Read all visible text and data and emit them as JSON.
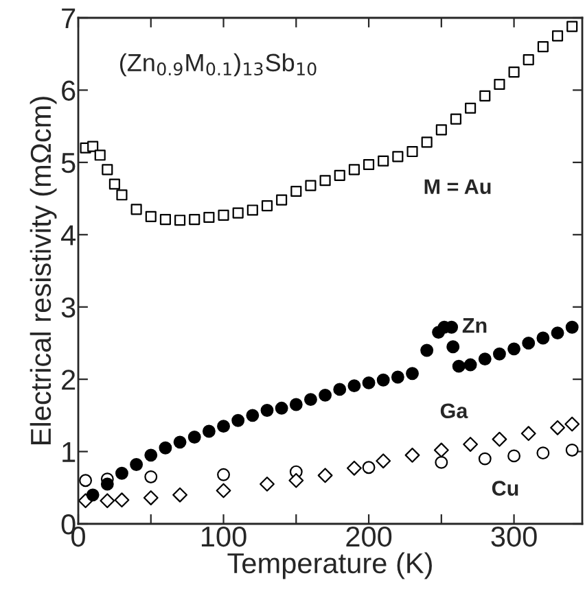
{
  "chart_data": {
    "type": "scatter",
    "xlabel": "Temperature (K)",
    "ylabel": "Electrical resistivity (mΩcm)",
    "annotations": [
      "(Zn$_{0.9}$M$_{0.1}$)$_{13}$Sb$_{10}$"
    ],
    "xlim": [
      0,
      347
    ],
    "ylim": [
      0,
      7
    ],
    "xticks": [
      0,
      {
        "value": 50,
        "label": null
      },
      100,
      {
        "value": 150,
        "label": null
      },
      200,
      {
        "value": 250,
        "label": null
      },
      300
    ],
    "yticks": [
      0,
      1,
      2,
      3,
      4,
      5,
      6,
      7
    ],
    "grid": false,
    "legend": false,
    "series": [
      {
        "name": "M = Au",
        "color": "#ffffff",
        "marker": "square",
        "x": [
          5,
          10,
          15,
          20,
          25,
          30,
          40,
          50,
          60,
          70,
          80,
          90,
          100,
          110,
          120,
          130,
          140,
          150,
          160,
          170,
          180,
          190,
          200,
          210,
          220,
          230,
          240,
          250,
          260,
          270,
          280,
          290,
          300,
          310,
          320,
          330,
          340
        ],
        "values": [
          5.2,
          5.22,
          5.1,
          4.9,
          4.7,
          4.55,
          4.35,
          4.25,
          4.21,
          4.2,
          4.21,
          4.24,
          4.27,
          4.3,
          4.34,
          4.4,
          4.48,
          4.6,
          4.68,
          4.75,
          4.82,
          4.9,
          4.97,
          5.02,
          5.08,
          5.15,
          5.28,
          5.45,
          5.6,
          5.75,
          5.92,
          6.08,
          6.25,
          6.42,
          6.6,
          6.75,
          6.88
        ]
      },
      {
        "name": "Zn",
        "color": "#000000",
        "marker": "circle",
        "x": [
          10,
          20,
          30,
          40,
          50,
          60,
          70,
          80,
          90,
          100,
          110,
          120,
          130,
          140,
          150,
          160,
          170,
          180,
          190,
          200,
          210,
          220,
          230,
          240,
          248,
          252,
          257,
          258,
          262,
          270,
          280,
          290,
          300,
          310,
          320,
          330,
          340
        ],
        "values": [
          0.4,
          0.55,
          0.7,
          0.82,
          0.95,
          1.05,
          1.13,
          1.2,
          1.28,
          1.35,
          1.43,
          1.5,
          1.57,
          1.6,
          1.65,
          1.72,
          1.78,
          1.86,
          1.91,
          1.95,
          1.99,
          2.03,
          2.08,
          2.4,
          2.65,
          2.72,
          2.72,
          2.45,
          2.18,
          2.2,
          2.28,
          2.35,
          2.42,
          2.5,
          2.57,
          2.64,
          2.72
        ]
      },
      {
        "name": "Ga",
        "color": "#ffffff",
        "marker": "diamond",
        "x": [
          5,
          20,
          30,
          50,
          70,
          100,
          130,
          150,
          170,
          190,
          210,
          230,
          250,
          270,
          290,
          310,
          330,
          340
        ],
        "values": [
          0.32,
          0.32,
          0.33,
          0.36,
          0.4,
          0.46,
          0.55,
          0.6,
          0.67,
          0.77,
          0.87,
          0.95,
          1.02,
          1.1,
          1.17,
          1.25,
          1.33,
          1.38
        ]
      },
      {
        "name": "Cu",
        "color": "#ffffff",
        "marker": "circle",
        "x": [
          5,
          20,
          50,
          100,
          150,
          200,
          250,
          280,
          300,
          320,
          340
        ],
        "values": [
          0.6,
          0.62,
          0.65,
          0.68,
          0.72,
          0.78,
          0.85,
          0.9,
          0.94,
          0.98,
          1.02
        ]
      }
    ]
  }
}
